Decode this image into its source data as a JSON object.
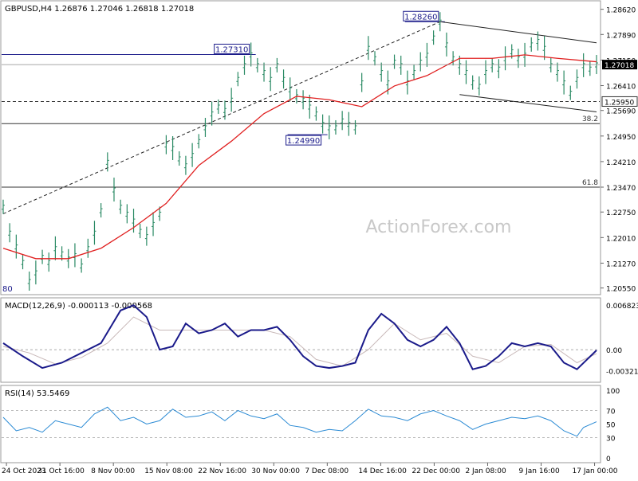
{
  "chart_data": {
    "type": "line",
    "symbol_info": "GBPUSD,H4  1.26876 1.27046 1.26818 1.27018",
    "watermark": "ActionForex.com",
    "x_tick_labels": [
      "24 Oct 2023",
      "31 Oct 16:00",
      "8 Nov 00:00",
      "15 Nov 08:00",
      "22 Nov 16:00",
      "30 Nov 00:00",
      "7 Dec 08:00",
      "14 Dec 16:00",
      "22 Dec 00:00",
      "2 Jan 08:00",
      "9 Jan 16:00",
      "17 Jan 00:00"
    ],
    "price": {
      "ylim": [
        1.2045,
        1.2875
      ],
      "y_ticks": [
        "1.28620",
        "1.27890",
        "1.27150",
        "1.26410",
        "1.25690",
        "1.24950",
        "1.24210",
        "1.23470",
        "1.22750",
        "1.22010",
        "1.21270",
        "1.20550"
      ],
      "current_price_label": "1.27018",
      "current_price": 1.27018,
      "bars": [
        [
          0,
          1.229
        ],
        [
          1,
          1.2215
        ],
        [
          2,
          1.2175
        ],
        [
          3,
          1.213
        ],
        [
          4,
          1.2075
        ],
        [
          5,
          1.21
        ],
        [
          6,
          1.2145
        ],
        [
          7,
          1.213
        ],
        [
          8,
          1.217
        ],
        [
          9,
          1.2155
        ],
        [
          10,
          1.214
        ],
        [
          11,
          1.215
        ],
        [
          12,
          1.212
        ],
        [
          13,
          1.217
        ],
        [
          14,
          1.2215
        ],
        [
          15,
          1.228
        ],
        [
          16,
          1.242
        ],
        [
          17,
          1.234
        ],
        [
          18,
          1.229
        ],
        [
          19,
          1.227
        ],
        [
          20,
          1.225
        ],
        [
          21,
          1.222
        ],
        [
          22,
          1.2205
        ],
        [
          23,
          1.224
        ],
        [
          24,
          1.227
        ],
        [
          25,
          1.247
        ],
        [
          26,
          1.246
        ],
        [
          27,
          1.243
        ],
        [
          28,
          1.241
        ],
        [
          29,
          1.244
        ],
        [
          30,
          1.248
        ],
        [
          31,
          1.252
        ],
        [
          32,
          1.256
        ],
        [
          33,
          1.258
        ],
        [
          34,
          1.257
        ],
        [
          35,
          1.26
        ],
        [
          36,
          1.266
        ],
        [
          37,
          1.27
        ],
        [
          38,
          1.2731
        ],
        [
          39,
          1.27
        ],
        [
          40,
          1.268
        ],
        [
          41,
          1.266
        ],
        [
          42,
          1.27
        ],
        [
          43,
          1.266
        ],
        [
          44,
          1.263
        ],
        [
          45,
          1.261
        ],
        [
          46,
          1.26
        ],
        [
          47,
          1.258
        ],
        [
          48,
          1.256
        ],
        [
          49,
          1.253
        ],
        [
          50,
          1.252
        ],
        [
          51,
          1.252
        ],
        [
          52,
          1.254
        ],
        [
          53,
          1.253
        ],
        [
          54,
          1.252
        ],
        [
          55,
          1.265
        ],
        [
          56,
          1.275
        ],
        [
          57,
          1.272
        ],
        [
          58,
          1.268
        ],
        [
          59,
          1.265
        ],
        [
          60,
          1.271
        ],
        [
          61,
          1.27
        ],
        [
          62,
          1.265
        ],
        [
          63,
          1.268
        ],
        [
          64,
          1.271
        ],
        [
          65,
          1.273
        ],
        [
          66,
          1.278
        ],
        [
          67,
          1.2826
        ],
        [
          68,
          1.276
        ],
        [
          69,
          1.272
        ],
        [
          70,
          1.27
        ],
        [
          71,
          1.268
        ],
        [
          72,
          1.265
        ],
        [
          73,
          1.264
        ],
        [
          74,
          1.268
        ],
        [
          75,
          1.27
        ],
        [
          76,
          1.269
        ],
        [
          77,
          1.272
        ],
        [
          78,
          1.274
        ],
        [
          79,
          1.272
        ],
        [
          80,
          1.273
        ],
        [
          81,
          1.276
        ],
        [
          82,
          1.277
        ],
        [
          83,
          1.275
        ],
        [
          84,
          1.27
        ],
        [
          85,
          1.268
        ],
        [
          86,
          1.265
        ],
        [
          87,
          1.262
        ],
        [
          88,
          1.266
        ],
        [
          89,
          1.27
        ],
        [
          90,
          1.269
        ],
        [
          91,
          1.2702
        ]
      ],
      "sma_line": [
        [
          0,
          1.217
        ],
        [
          5,
          1.214
        ],
        [
          10,
          1.214
        ],
        [
          15,
          1.217
        ],
        [
          20,
          1.223
        ],
        [
          25,
          1.23
        ],
        [
          30,
          1.241
        ],
        [
          35,
          1.248
        ],
        [
          40,
          1.256
        ],
        [
          45,
          1.261
        ],
        [
          50,
          1.26
        ],
        [
          55,
          1.258
        ],
        [
          60,
          1.264
        ],
        [
          65,
          1.267
        ],
        [
          70,
          1.272
        ],
        [
          75,
          1.272
        ],
        [
          80,
          1.273
        ],
        [
          85,
          1.272
        ],
        [
          91,
          1.271
        ]
      ],
      "levels": [
        {
          "label": "1.27310",
          "value": 1.2731,
          "kind": "peak-box",
          "bar": 38
        },
        {
          "label": "1.28260",
          "value": 1.2826,
          "kind": "peak-box",
          "bar": 67
        },
        {
          "label": "1.24990",
          "value": 1.2499,
          "kind": "trough-box",
          "bar": 49
        },
        {
          "label": "1.25950",
          "value": 1.2595,
          "kind": "dashed-line-with-axis-label"
        },
        {
          "label": "38.2",
          "value": 1.2531,
          "kind": "fibo-line"
        },
        {
          "label": "61.8",
          "value": 1.2347,
          "kind": "fibo-line"
        }
      ],
      "left_edge_label": "80",
      "trendlines": {
        "rising_support_dashed": [
          [
            0,
            1.227
          ],
          [
            67,
            1.2826
          ]
        ],
        "falling_channel_upper": [
          [
            67,
            1.2826
          ],
          [
            91,
            1.2765
          ]
        ],
        "falling_channel_lower": [
          [
            70,
            1.2615
          ],
          [
            91,
            1.2565
          ]
        ]
      }
    },
    "macd": {
      "label": "MACD(12,26,9) -0.000113 -0.000568",
      "ylim": [
        -0.0045,
        0.0072
      ],
      "y_ticks": [
        "0.006823",
        "0.00",
        "-0.00321"
      ],
      "zero_line": 0,
      "macd_line": [
        [
          0,
          0.001
        ],
        [
          3,
          -0.001
        ],
        [
          6,
          -0.0028
        ],
        [
          9,
          -0.002
        ],
        [
          12,
          -0.0005
        ],
        [
          15,
          0.001
        ],
        [
          18,
          0.006
        ],
        [
          20,
          0.0068
        ],
        [
          22,
          0.005
        ],
        [
          24,
          0.0
        ],
        [
          26,
          0.0005
        ],
        [
          28,
          0.004
        ],
        [
          30,
          0.0025
        ],
        [
          32,
          0.003
        ],
        [
          34,
          0.004
        ],
        [
          36,
          0.002
        ],
        [
          38,
          0.003
        ],
        [
          40,
          0.003
        ],
        [
          42,
          0.0035
        ],
        [
          44,
          0.0015
        ],
        [
          46,
          -0.001
        ],
        [
          48,
          -0.0025
        ],
        [
          50,
          -0.0028
        ],
        [
          52,
          -0.0025
        ],
        [
          54,
          -0.002
        ],
        [
          56,
          0.003
        ],
        [
          58,
          0.0055
        ],
        [
          60,
          0.004
        ],
        [
          62,
          0.0015
        ],
        [
          64,
          0.0005
        ],
        [
          66,
          0.0015
        ],
        [
          68,
          0.0035
        ],
        [
          70,
          0.001
        ],
        [
          72,
          -0.003
        ],
        [
          74,
          -0.0025
        ],
        [
          76,
          -0.001
        ],
        [
          78,
          0.001
        ],
        [
          80,
          0.0005
        ],
        [
          82,
          0.001
        ],
        [
          84,
          0.0005
        ],
        [
          86,
          -0.002
        ],
        [
          88,
          -0.003
        ],
        [
          91,
          -0.0001
        ]
      ],
      "signal_line": [
        [
          0,
          0.0005
        ],
        [
          4,
          -0.0005
        ],
        [
          8,
          -0.0022
        ],
        [
          12,
          -0.0012
        ],
        [
          16,
          0.001
        ],
        [
          20,
          0.005
        ],
        [
          24,
          0.003
        ],
        [
          28,
          0.003
        ],
        [
          32,
          0.003
        ],
        [
          36,
          0.003
        ],
        [
          40,
          0.003
        ],
        [
          44,
          0.002
        ],
        [
          48,
          -0.0015
        ],
        [
          52,
          -0.0025
        ],
        [
          56,
          0.0
        ],
        [
          60,
          0.004
        ],
        [
          64,
          0.0015
        ],
        [
          68,
          0.0025
        ],
        [
          72,
          -0.001
        ],
        [
          76,
          -0.002
        ],
        [
          80,
          0.0005
        ],
        [
          84,
          0.0008
        ],
        [
          88,
          -0.002
        ],
        [
          91,
          -0.0006
        ]
      ]
    },
    "rsi": {
      "label": "RSI(14) 53.5469",
      "ylim": [
        0,
        100
      ],
      "y_ticks": [
        "100",
        "70",
        "50",
        "30",
        "0"
      ],
      "levels": [
        70,
        30
      ],
      "rsi_line": [
        [
          0,
          60
        ],
        [
          2,
          40
        ],
        [
          4,
          45
        ],
        [
          6,
          38
        ],
        [
          8,
          55
        ],
        [
          10,
          50
        ],
        [
          12,
          45
        ],
        [
          14,
          65
        ],
        [
          16,
          75
        ],
        [
          18,
          55
        ],
        [
          20,
          60
        ],
        [
          22,
          50
        ],
        [
          24,
          55
        ],
        [
          26,
          72
        ],
        [
          28,
          60
        ],
        [
          30,
          62
        ],
        [
          32,
          68
        ],
        [
          34,
          55
        ],
        [
          36,
          70
        ],
        [
          38,
          62
        ],
        [
          40,
          58
        ],
        [
          42,
          65
        ],
        [
          44,
          48
        ],
        [
          46,
          45
        ],
        [
          48,
          38
        ],
        [
          50,
          42
        ],
        [
          52,
          40
        ],
        [
          54,
          55
        ],
        [
          56,
          72
        ],
        [
          58,
          62
        ],
        [
          60,
          60
        ],
        [
          62,
          55
        ],
        [
          64,
          65
        ],
        [
          66,
          70
        ],
        [
          68,
          62
        ],
        [
          70,
          55
        ],
        [
          72,
          42
        ],
        [
          74,
          50
        ],
        [
          76,
          55
        ],
        [
          78,
          60
        ],
        [
          80,
          58
        ],
        [
          82,
          62
        ],
        [
          84,
          55
        ],
        [
          86,
          40
        ],
        [
          88,
          32
        ],
        [
          89,
          45
        ],
        [
          91,
          53.5
        ]
      ]
    },
    "colors": {
      "price_bars": "#2a8a64",
      "sma": "#e02020",
      "macd": "#1a1a8a",
      "signal": "#c8b8b8",
      "rsi": "#2a8ad4",
      "level_box_text": "#1a1a8a",
      "current_price_bg": "#000000"
    }
  }
}
